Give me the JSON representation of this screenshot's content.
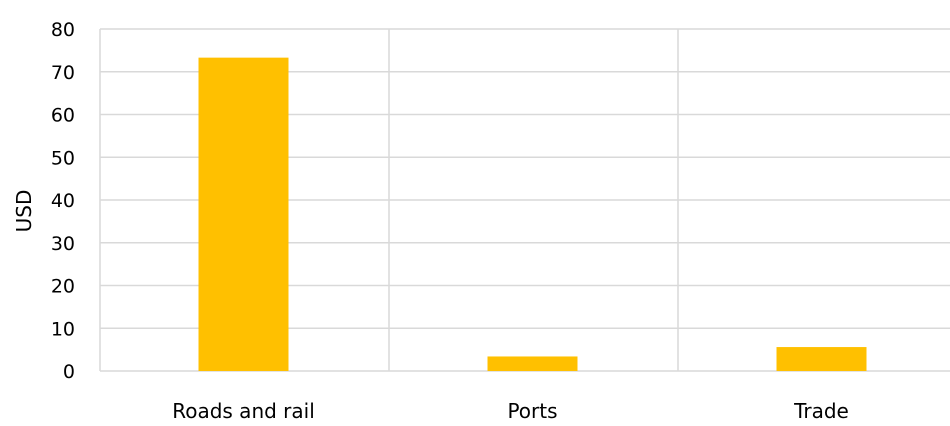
{
  "chart_data": {
    "type": "bar",
    "categories": [
      "Roads and rail",
      "Ports",
      "Trade"
    ],
    "values": [
      73.3,
      3.4,
      5.6
    ],
    "xlabel": "",
    "ylabel": "USD",
    "ylim": [
      0,
      80
    ],
    "yticks": [
      0,
      10,
      20,
      30,
      40,
      50,
      60,
      70,
      80
    ],
    "grid": true,
    "legend": "none",
    "bar_color": "#FFC000",
    "grid_color": "#D9D9D9"
  }
}
